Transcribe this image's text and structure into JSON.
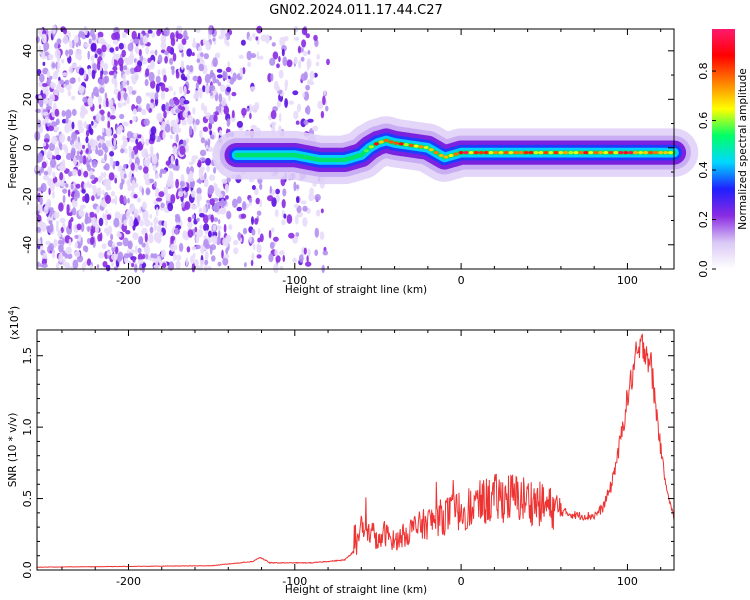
{
  "title": "GN02.2024.011.17.44.C27",
  "chart_data": [
    {
      "type": "heatmap",
      "xlabel": "Height of straight line (km)",
      "ylabel": "Frequency (Hz)",
      "xlim": [
        -255,
        128
      ],
      "ylim": [
        -50,
        49
      ],
      "x_ticks": [
        -200,
        -100,
        0,
        100
      ],
      "y_ticks": [
        -40,
        -20,
        0,
        20,
        40
      ],
      "colorbar": {
        "label": "Normalized spectral amplitude",
        "range": [
          0,
          0.97
        ],
        "ticks": [
          0.0,
          0.2,
          0.4,
          0.6,
          0.8
        ],
        "colormap": [
          "#ffffff",
          "#d9c7f5",
          "#8a2be2",
          "#1f1fff",
          "#00d8ff",
          "#00ff66",
          "#ffff00",
          "#ff8000",
          "#ff0000",
          "#ff1a6e"
        ]
      },
      "noise_region": {
        "x": [
          -255,
          -80
        ],
        "freq": [
          -50,
          49
        ]
      },
      "signal_ridge": {
        "x": [
          -135,
          -120,
          -100,
          -85,
          -70,
          -60,
          -55,
          -50,
          -45,
          -40,
          -30,
          -20,
          -15,
          -10,
          -5,
          0,
          20,
          50,
          80,
          110,
          128
        ],
        "freq": [
          -3,
          -3,
          -3,
          -5,
          -5,
          -3,
          0,
          2,
          3,
          2,
          1,
          0,
          -2,
          -4,
          -3,
          -2,
          -2,
          -2,
          -2,
          -2,
          -2
        ],
        "amplitude": [
          0.35,
          0.4,
          0.4,
          0.35,
          0.45,
          0.55,
          0.7,
          0.9,
          0.85,
          0.8,
          0.85,
          0.75,
          0.8,
          0.65,
          0.8,
          0.9,
          0.85,
          0.8,
          0.85,
          0.9,
          0.85
        ]
      }
    },
    {
      "type": "line",
      "xlabel": "Height of straight line (km)",
      "ylabel": "SNR (10 * v/v)",
      "y_multiplier": "(x10^4)",
      "xlim": [
        -255,
        128
      ],
      "ylim": [
        0,
        16800
      ],
      "x_ticks": [
        -200,
        -100,
        0,
        100
      ],
      "y_ticks": [
        0,
        5000,
        10000,
        15000
      ],
      "y_tick_labels": [
        "0.0",
        "0.5",
        "1.0",
        "1.5"
      ],
      "series": [
        {
          "color": "#ee3333",
          "x": [
            -255,
            -200,
            -150,
            -125,
            -121,
            -115,
            -90,
            -70,
            -63,
            -60,
            -57,
            -54,
            -50,
            -46,
            -40,
            -30,
            -20,
            -10,
            0,
            10,
            20,
            30,
            40,
            50,
            60,
            70,
            80,
            85,
            90,
            95,
            100,
            105,
            110,
            114,
            118,
            122,
            126,
            128
          ],
          "values": [
            200,
            250,
            300,
            600,
            900,
            500,
            500,
            700,
            1500,
            3200,
            2200,
            2900,
            1800,
            2600,
            2000,
            2800,
            3300,
            3800,
            4200,
            4600,
            5000,
            5100,
            4900,
            4500,
            4100,
            3800,
            3800,
            4300,
            5800,
            8500,
            12000,
            14800,
            15800,
            14500,
            10500,
            6800,
            4500,
            3600
          ]
        }
      ]
    }
  ]
}
